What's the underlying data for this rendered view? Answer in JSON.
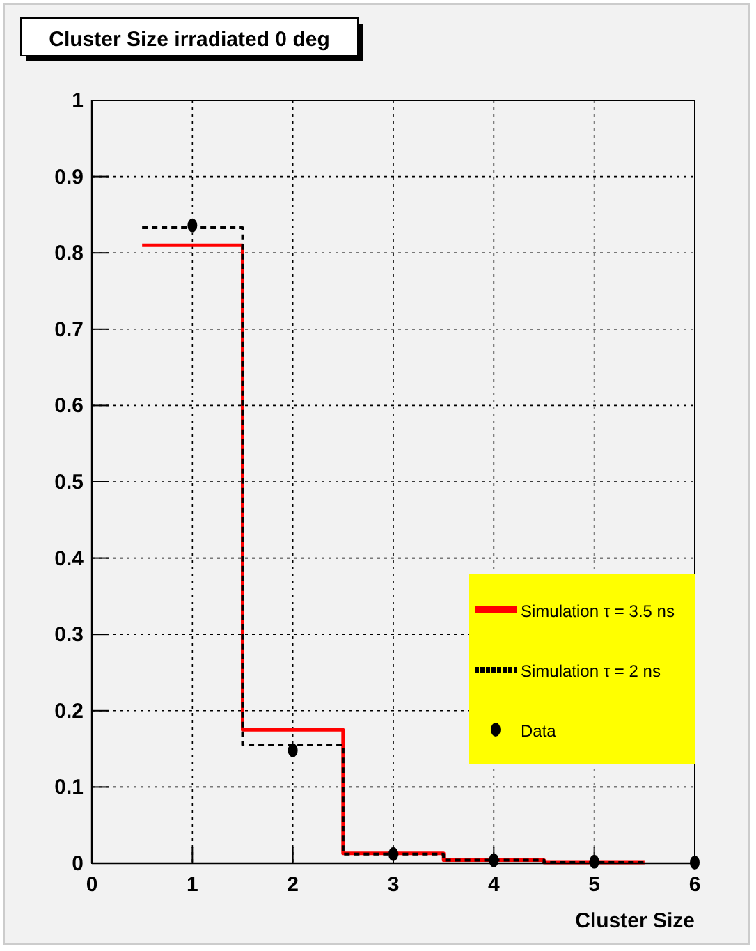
{
  "chart_data": {
    "type": "histogram",
    "title": "Cluster Size irradiated 0 deg",
    "xlabel": "Cluster Size",
    "bins": [
      0.5,
      1.5,
      2.5,
      3.5,
      4.5,
      5.5
    ],
    "series": [
      {
        "name": "Simulation τ = 3.5 ns",
        "color": "#ff0000",
        "values": [
          0.81,
          0.175,
          0.013,
          0.004,
          0.001
        ],
        "line_style": "solid"
      },
      {
        "name": "Simulation τ = 2 ns",
        "color": "#000000",
        "values": [
          0.833,
          0.155,
          0.012,
          0.004,
          0.001
        ],
        "line_style": "dashed"
      },
      {
        "name": "Data",
        "type": "scatter",
        "color": "#000000",
        "x": [
          1,
          2,
          3,
          4,
          5,
          6
        ],
        "values": [
          0.836,
          0.148,
          0.012,
          0.004,
          0.002,
          0.001
        ],
        "marker": "circle"
      }
    ],
    "xlim": [
      0,
      6
    ],
    "ylim": [
      0,
      1
    ],
    "xticks": [
      0,
      1,
      2,
      3,
      4,
      5,
      6
    ],
    "yticks": [
      0,
      0.1,
      0.2,
      0.3,
      0.4,
      0.5,
      0.6,
      0.7,
      0.8,
      0.9,
      1
    ],
    "grid": true,
    "legend": "right"
  }
}
